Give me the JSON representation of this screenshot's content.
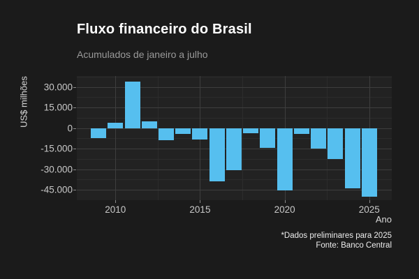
{
  "header": {
    "title": "Fluxo financeiro do Brasil",
    "subtitle": "Acumulados de janeiro a julho"
  },
  "footer": {
    "note": "*Dados preliminares para 2025",
    "source": "Fonte: Banco Central"
  },
  "chart_data": {
    "type": "bar",
    "title": "Fluxo financeiro do Brasil",
    "subtitle": "Acumulados de janeiro a julho",
    "xlabel": "Ano",
    "ylabel": "US$ milhões",
    "categories": [
      2009,
      2010,
      2011,
      2012,
      2013,
      2014,
      2015,
      2016,
      2017,
      2018,
      2019,
      2020,
      2021,
      2022,
      2023,
      2024,
      2025
    ],
    "values": [
      -7000,
      4000,
      34000,
      4700,
      -9000,
      -4000,
      -8500,
      -39000,
      -30400,
      -3600,
      -14300,
      -45600,
      -4300,
      -15000,
      -22600,
      -43700,
      -49800
    ],
    "ylim": [
      -52500,
      38000
    ],
    "y_major_ticks": [
      30000,
      15000,
      0,
      -15000,
      -30000,
      -45000
    ],
    "y_tick_labels": [
      "30.000",
      "15.000",
      "0",
      "-15.000",
      "-30.000",
      "-45.000"
    ],
    "y_minor_ticks": [
      37500,
      22500,
      7500,
      -7500,
      -22500,
      -37500
    ],
    "x_major_ticks": [
      2010,
      2015,
      2020,
      2025
    ],
    "x_tick_labels": [
      "2010",
      "2015",
      "2020",
      "2025"
    ],
    "x_minor_ticks": [
      2012.5,
      2017.5,
      2022.5
    ],
    "legend": "none",
    "grid": true,
    "colors": {
      "bar": "#56BFEF",
      "page_bg": "#1B1B1B",
      "panel_bg": "#222222",
      "grid_major": "#3E3E3E",
      "grid_minor": "#2C2C2C"
    }
  }
}
